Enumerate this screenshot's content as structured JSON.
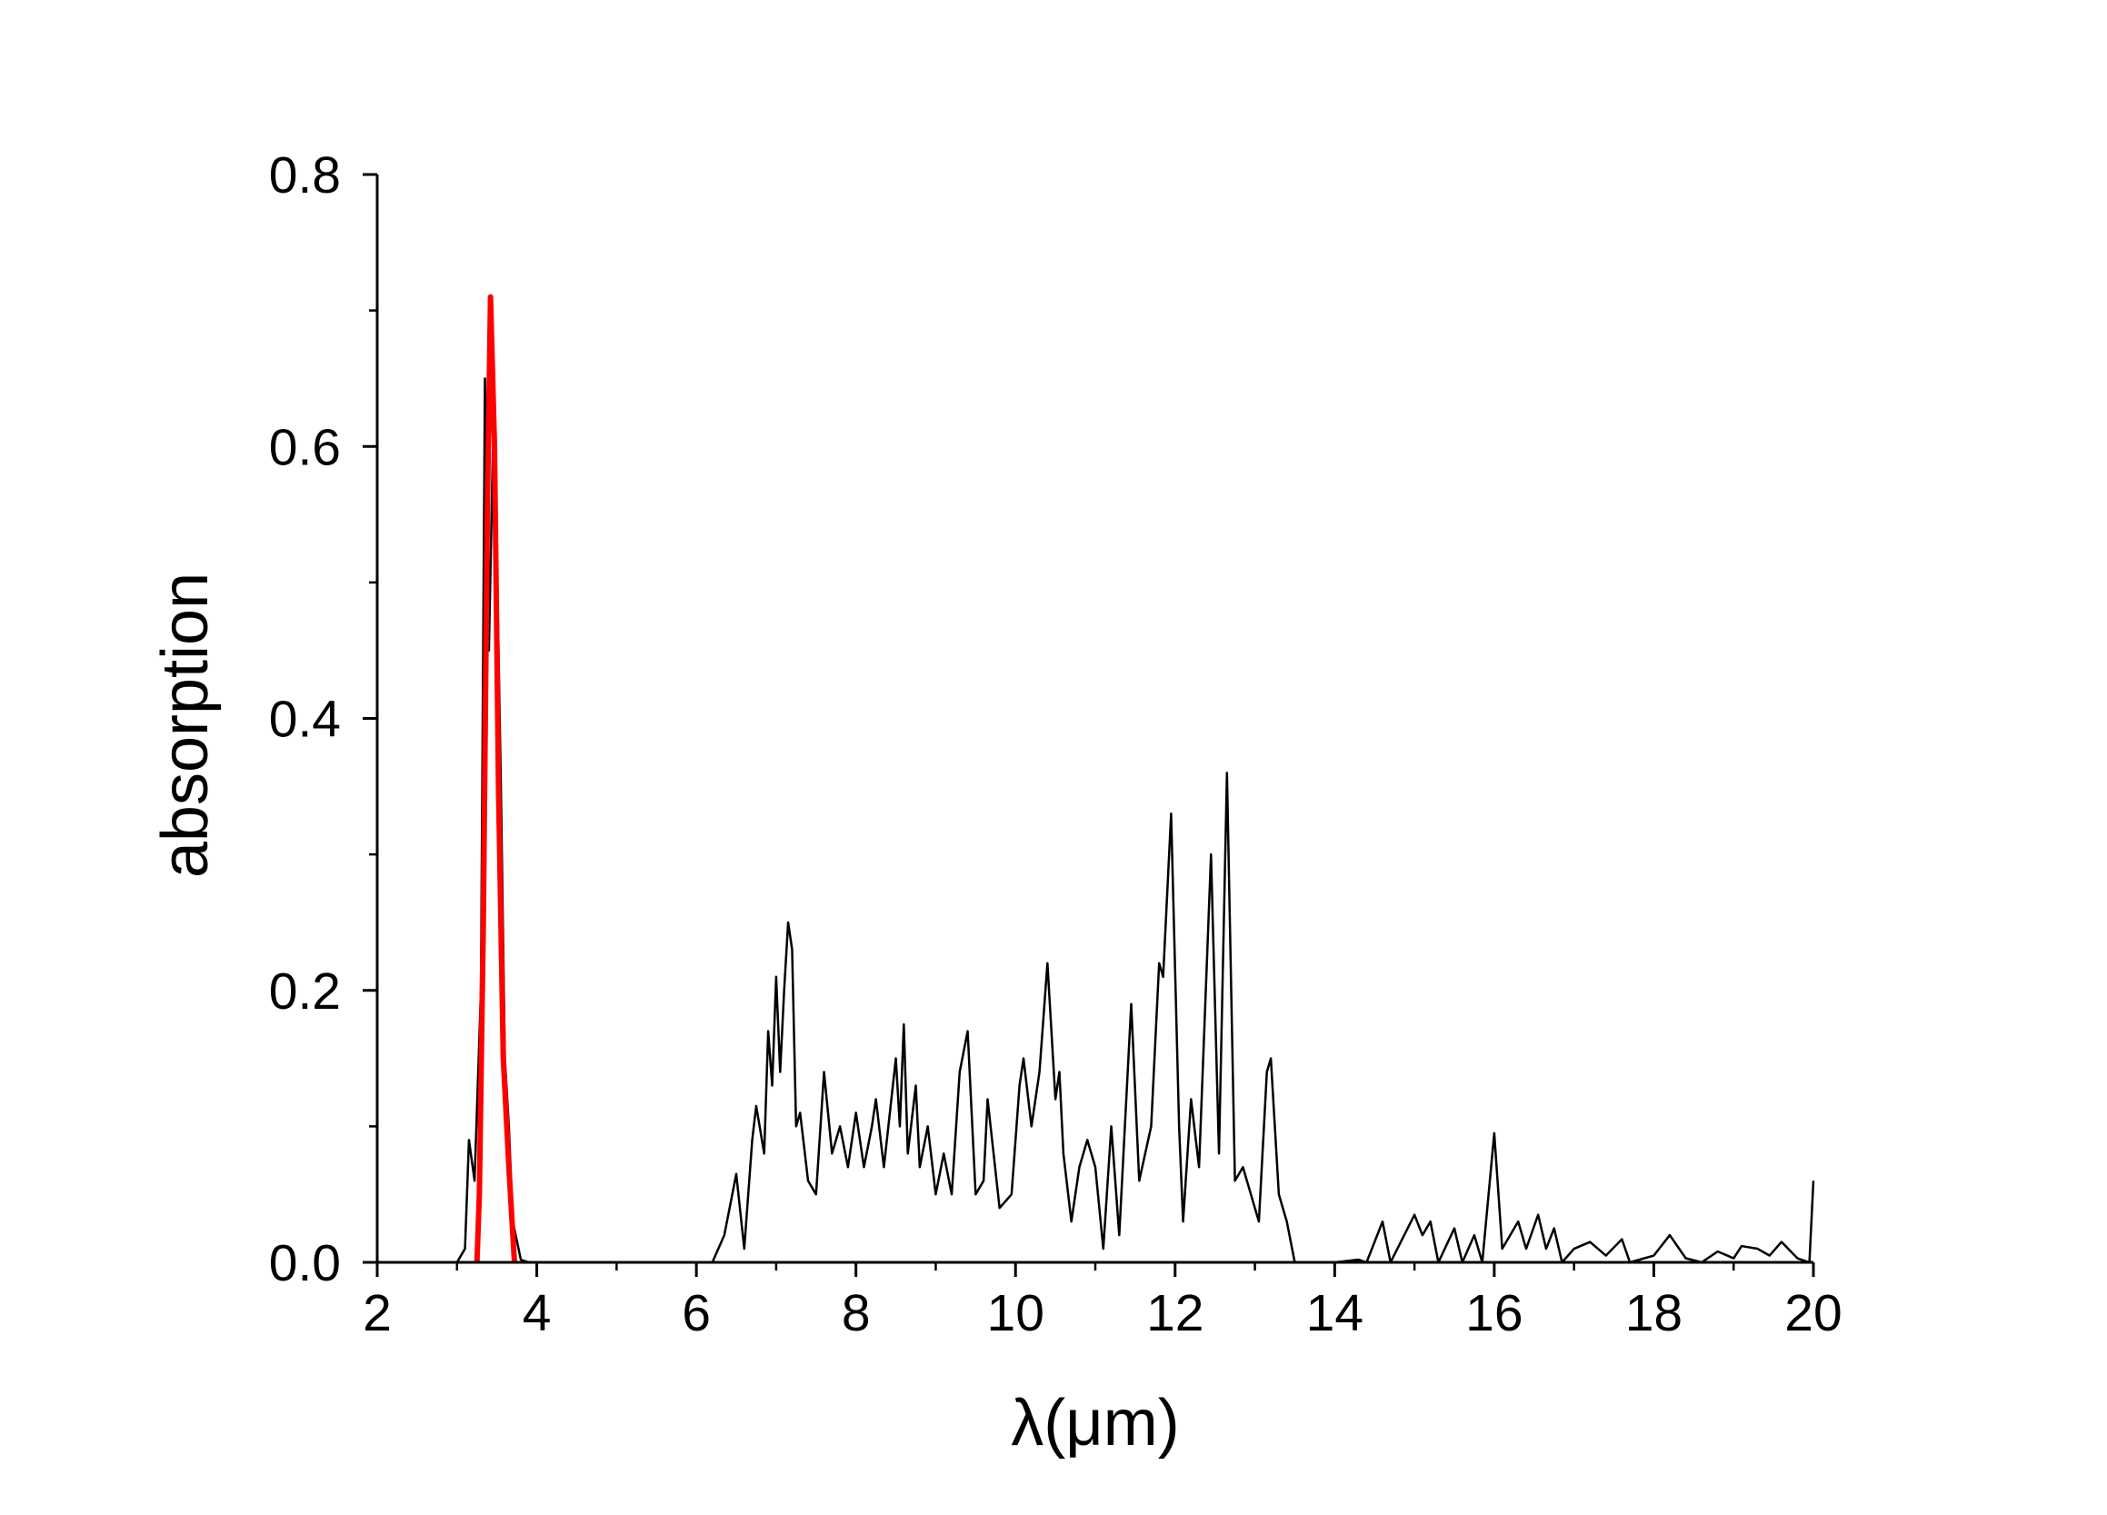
{
  "chart_data": {
    "type": "line",
    "xlabel": "λ(μm)",
    "ylabel": "absorption",
    "xlim": [
      2,
      20
    ],
    "xticks": [
      2,
      4,
      6,
      8,
      10,
      12,
      14,
      16,
      18,
      20
    ],
    "ylim": [
      0,
      0.8
    ],
    "yticks": [
      {
        "value": 0,
        "label": "0.0"
      },
      0.2,
      0.4,
      0.6,
      0.8
    ],
    "grid": false,
    "series": [
      {
        "color": "#000000",
        "x": [
          3.0,
          3.1,
          3.15,
          3.22,
          3.3,
          3.35,
          3.4,
          3.45,
          3.5,
          3.55,
          3.6,
          3.65,
          3.7,
          3.8,
          3.9,
          6.2,
          6.35,
          6.5,
          6.6,
          6.7,
          6.75,
          6.85,
          6.9,
          6.95,
          7.0,
          7.05,
          7.1,
          7.15,
          7.2,
          7.25,
          7.3,
          7.4,
          7.5,
          7.6,
          7.7,
          7.8,
          7.9,
          8.0,
          8.1,
          8.2,
          8.25,
          8.35,
          8.5,
          8.55,
          8.6,
          8.65,
          8.75,
          8.8,
          8.9,
          9.0,
          9.1,
          9.2,
          9.3,
          9.4,
          9.5,
          9.6,
          9.65,
          9.8,
          9.95,
          10.05,
          10.1,
          10.2,
          10.3,
          10.4,
          10.5,
          10.55,
          10.6,
          10.7,
          10.8,
          10.9,
          11.0,
          11.1,
          11.2,
          11.3,
          11.45,
          11.55,
          11.7,
          11.8,
          11.85,
          11.95,
          12.05,
          12.1,
          12.2,
          12.3,
          12.45,
          12.55,
          12.65,
          12.75,
          12.85,
          12.95,
          13.05,
          13.15,
          13.2,
          13.3,
          13.4,
          13.5,
          14.0,
          14.3,
          14.4,
          14.6,
          14.7,
          15.0,
          15.1,
          15.2,
          15.3,
          15.5,
          15.6,
          15.75,
          15.85,
          16.0,
          16.1,
          16.3,
          16.4,
          16.55,
          16.65,
          16.75,
          16.85,
          17.0,
          17.2,
          17.4,
          17.6,
          17.7,
          18.0,
          18.2,
          18.4,
          18.6,
          18.8,
          19.0,
          19.1,
          19.3,
          19.45,
          19.6,
          19.8,
          19.95,
          20.0
        ],
        "values": [
          0,
          0.01,
          0.09,
          0.06,
          0.2,
          0.65,
          0.45,
          0.6,
          0.52,
          0.35,
          0.15,
          0.1,
          0.03,
          0.002,
          0,
          0,
          0.02,
          0.065,
          0.01,
          0.09,
          0.115,
          0.08,
          0.17,
          0.13,
          0.21,
          0.14,
          0.2,
          0.25,
          0.23,
          0.1,
          0.11,
          0.06,
          0.05,
          0.14,
          0.08,
          0.1,
          0.07,
          0.11,
          0.07,
          0.1,
          0.12,
          0.07,
          0.15,
          0.1,
          0.175,
          0.08,
          0.13,
          0.07,
          0.1,
          0.05,
          0.08,
          0.05,
          0.14,
          0.17,
          0.05,
          0.06,
          0.12,
          0.04,
          0.05,
          0.13,
          0.15,
          0.1,
          0.14,
          0.22,
          0.12,
          0.14,
          0.08,
          0.03,
          0.07,
          0.09,
          0.07,
          0.01,
          0.1,
          0.02,
          0.19,
          0.06,
          0.1,
          0.22,
          0.21,
          0.33,
          0.1,
          0.03,
          0.12,
          0.07,
          0.3,
          0.08,
          0.36,
          0.06,
          0.07,
          0.05,
          0.03,
          0.14,
          0.15,
          0.05,
          0.03,
          0,
          0,
          0.002,
          0,
          0.03,
          0,
          0.035,
          0.02,
          0.03,
          0,
          0.025,
          0,
          0.02,
          0,
          0.095,
          0.01,
          0.03,
          0.01,
          0.035,
          0.01,
          0.025,
          0,
          0.01,
          0.015,
          0.005,
          0.017,
          0,
          0.005,
          0.02,
          0.003,
          0,
          0.008,
          0.003,
          0.012,
          0.01,
          0.005,
          0.015,
          0.003,
          0,
          0.06
        ]
      },
      {
        "color": "#ff0000",
        "x": [
          3.25,
          3.28,
          3.33,
          3.38,
          3.42,
          3.47,
          3.52,
          3.58,
          3.65,
          3.72
        ],
        "values": [
          0,
          0.05,
          0.25,
          0.55,
          0.71,
          0.6,
          0.35,
          0.15,
          0.07,
          0
        ]
      }
    ]
  }
}
